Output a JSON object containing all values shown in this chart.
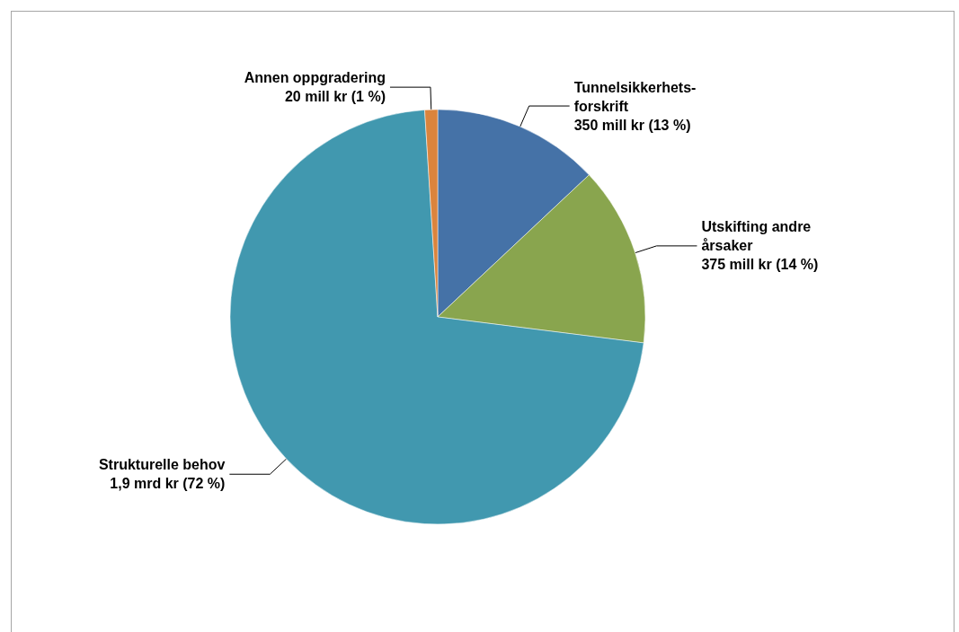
{
  "chart_data": {
    "type": "pie",
    "categories": [
      "Tunnelsikkerhets-forskrift",
      "Utskifting andre årsaker",
      "Strukturelle behov",
      "Annen oppgradering"
    ],
    "values": [
      13,
      14,
      72,
      1
    ],
    "value_labels": [
      "350 mill kr (13 %)",
      "375 mill kr (14 %)",
      "1,9 mrd kr (72 %)",
      "20 mill kr (1 %)"
    ],
    "colors": [
      "#4572a7",
      "#89a54e",
      "#4198af",
      "#db843d"
    ]
  }
}
